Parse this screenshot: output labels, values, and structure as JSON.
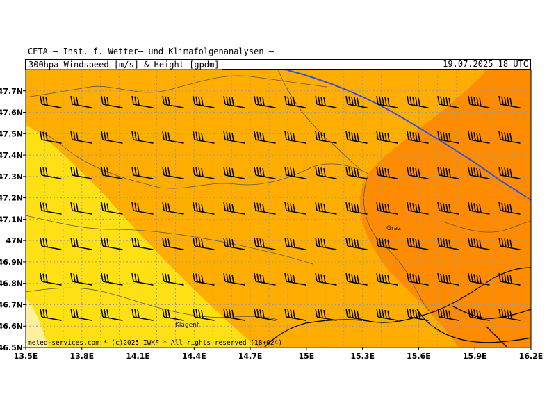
{
  "header": {
    "institute": "CETA – Inst. f. Wetter– und Klimafolgenanalysen –",
    "title": "300hpa_Windspeed_[m/s]_&_Height_[gpdm]",
    "valid_time": "19.07.2025 18 UTC"
  },
  "map": {
    "lon_range": [
      13.5,
      16.2
    ],
    "lat_range": [
      46.5,
      47.8
    ],
    "x_ticks": [
      "13.5E",
      "13.8E",
      "14.1E",
      "14.4E",
      "14.7E",
      "15E",
      "15.3E",
      "15.6E",
      "15.9E",
      "16.2E"
    ],
    "y_ticks": [
      "47.7N",
      "47.6N",
      "47.5N",
      "47.4N",
      "47.3N",
      "47.2N",
      "47.1N",
      "47N",
      "46.9N",
      "46.8N",
      "46.7N",
      "46.6N",
      "46.5N"
    ],
    "cities": [
      {
        "name": "Graz",
        "lon": 15.5,
        "lat": 47.07
      },
      {
        "name": "Klagenf.",
        "lon": 14.3,
        "lat": 46.62
      }
    ],
    "footer": "meteo-services.com * (c)2025 IWKF * All rights reserved (18+024)",
    "colors": {
      "band_1": "#fff0a0",
      "band_2": "#ffe014",
      "band_3": "#ffc800",
      "band_4": "#ffae00",
      "band_5": "#ff8c00",
      "contour": "#3050e0",
      "grid": "#9a9a9a"
    },
    "wind_barb_direction": "from west-northwest",
    "height_contour_label": ""
  }
}
